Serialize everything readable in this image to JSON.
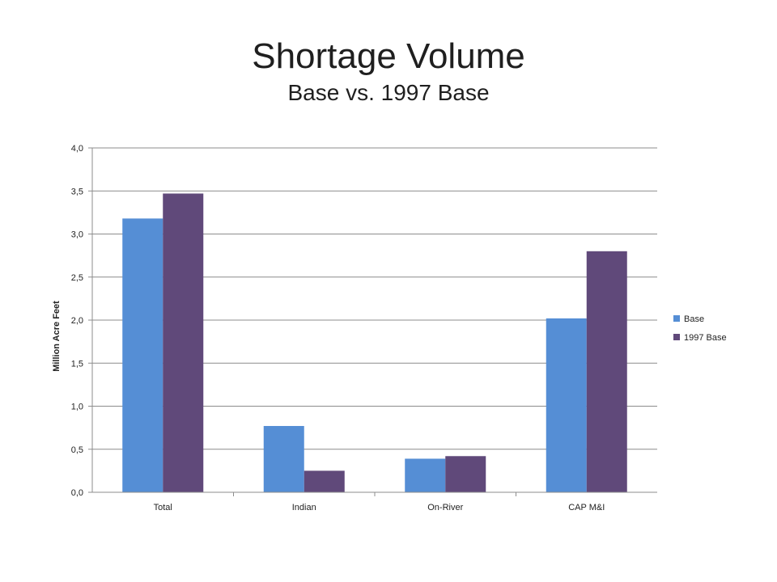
{
  "chart_data": {
    "type": "bar",
    "title": "Shortage Volume",
    "subtitle": "Base vs. 1997 Base",
    "xlabel": "",
    "ylabel": "Million Acre Feet",
    "categories": [
      "Total",
      "Indian",
      "On-River",
      "CAP M&I"
    ],
    "series": [
      {
        "name": "Base",
        "color": "#558ed5",
        "values": [
          3.18,
          0.77,
          0.39,
          2.02
        ]
      },
      {
        "name": "1997 Base",
        "color": "#60497a",
        "values": [
          3.47,
          0.25,
          0.42,
          2.8
        ]
      }
    ],
    "ylim": [
      0,
      4.0
    ],
    "yticks": [
      "0,0",
      "0,5",
      "1,0",
      "1,5",
      "2,0",
      "2,5",
      "3,0",
      "3,5",
      "4,0"
    ],
    "ytick_values": [
      0,
      0.5,
      1.0,
      1.5,
      2.0,
      2.5,
      3.0,
      3.5,
      4.0
    ],
    "grid": true,
    "legend_position": "right"
  }
}
